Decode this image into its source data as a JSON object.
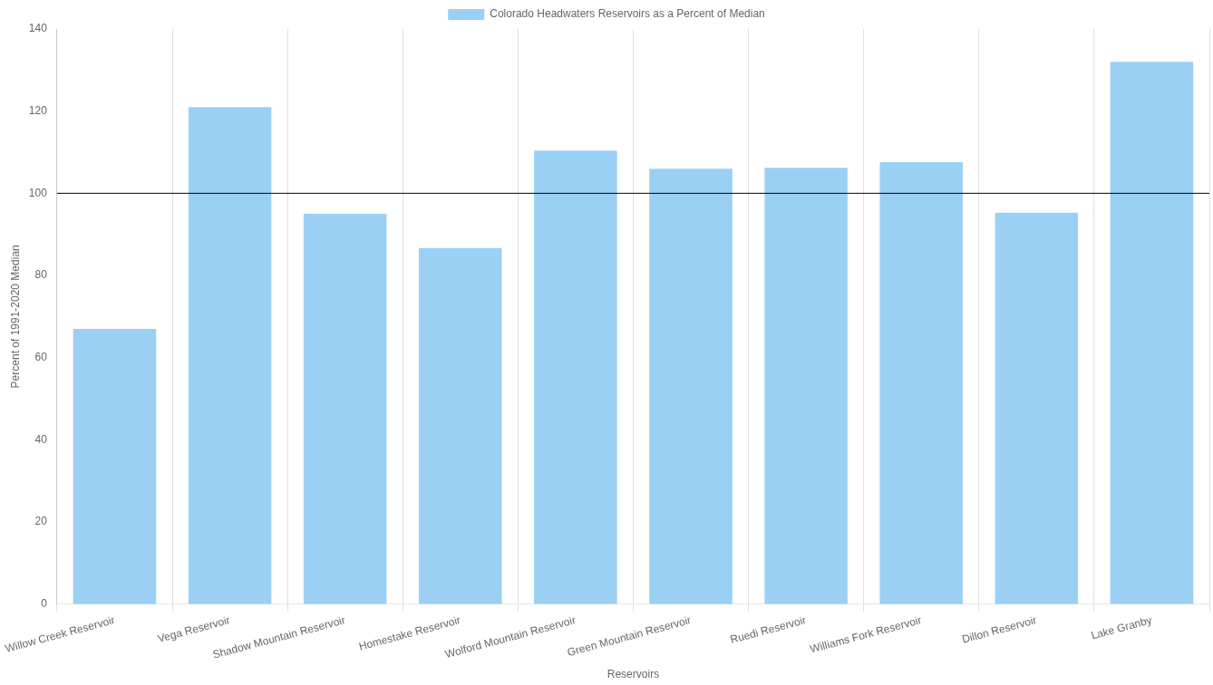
{
  "chart_data": {
    "type": "bar",
    "xlabel": "Reservoirs",
    "ylabel": "Percent of 1991-2020 Median",
    "categories": [
      "Willow Creek Reservoir",
      "Vega Reservoir",
      "Shadow Mountain Reservoir",
      "Homestake Reservoir",
      "Wolford Mountain Reservoir",
      "Green Mountain Reservoir",
      "Ruedi Reservoir",
      "Williams Fork Reservoir",
      "Dillon Reservoir",
      "Lake Granby"
    ],
    "series": [
      {
        "name": "Colorado Headwaters Reservoirs as a Percent of Median",
        "color": "#9bd0f5",
        "values": [
          67,
          121,
          95,
          86.7,
          110.4,
          106,
          106.2,
          107.6,
          95.3,
          132
        ]
      }
    ],
    "ylim": [
      0,
      140
    ],
    "yticks": [
      0,
      20,
      40,
      60,
      80,
      100,
      120,
      140
    ],
    "grid": "x",
    "legend": "top",
    "ref_lines": [
      {
        "axis": "y",
        "value": 100,
        "color": "#000000"
      }
    ]
  }
}
